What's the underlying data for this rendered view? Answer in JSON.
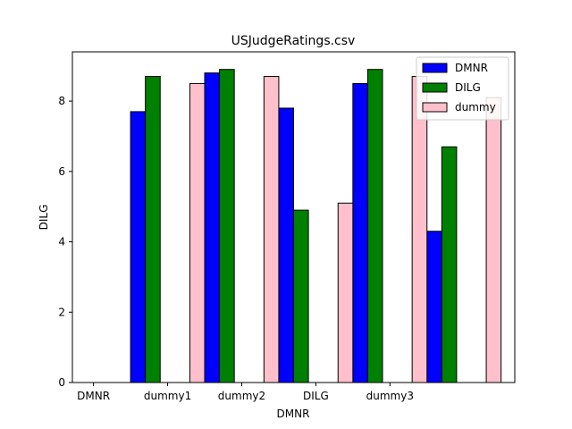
{
  "chart_data": {
    "type": "bar",
    "title": "USJudgeRatings.csv",
    "xlabel": "DMNR",
    "ylabel": "DILG",
    "ylim": [
      0,
      9.4
    ],
    "yticks": [
      0,
      2,
      4,
      6,
      8
    ],
    "grid": false,
    "legend_position": "top-right",
    "tick_labels": [
      "DMNR",
      "dummy1",
      "dummy2",
      "DILG",
      "dummy3"
    ],
    "series": [
      {
        "name": "DMNR",
        "color": "#0000ff",
        "points": [
          {
            "x": 0.6,
            "y": 7.7
          },
          {
            "x": 1.6,
            "y": 8.8
          },
          {
            "x": 2.6,
            "y": 7.8
          },
          {
            "x": 3.6,
            "y": 8.5
          },
          {
            "x": 4.6,
            "y": 4.3
          }
        ]
      },
      {
        "name": "DILG",
        "color": "#008000",
        "points": [
          {
            "x": 0.8,
            "y": 8.7
          },
          {
            "x": 1.8,
            "y": 8.9
          },
          {
            "x": 2.8,
            "y": 4.9
          },
          {
            "x": 3.8,
            "y": 8.9
          },
          {
            "x": 4.8,
            "y": 6.7
          }
        ]
      },
      {
        "name": "dummy",
        "color": "#ffc0cb",
        "points": [
          {
            "x": 1.4,
            "y": 8.5
          },
          {
            "x": 2.4,
            "y": 8.7
          },
          {
            "x": 3.4,
            "y": 5.1
          },
          {
            "x": 4.4,
            "y": 8.7
          },
          {
            "x": 5.4,
            "y": 8.1
          }
        ]
      }
    ]
  }
}
